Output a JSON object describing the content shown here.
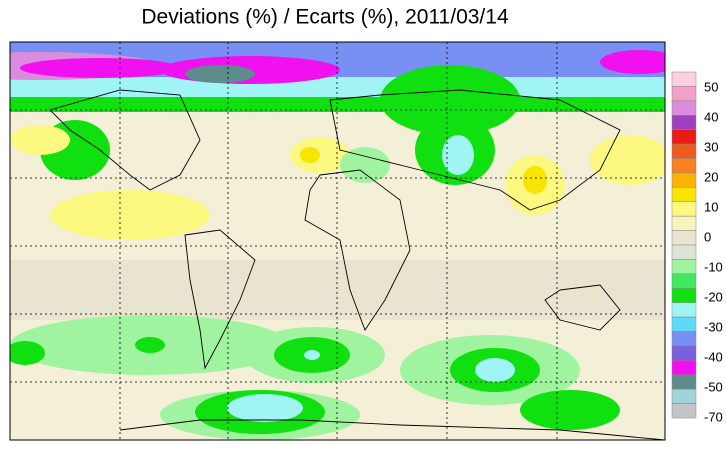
{
  "title": "Deviations (%) / Ecarts (%), 2011/03/14",
  "colorbar": {
    "colors": [
      "#fcd0dc",
      "#f4a0c8",
      "#dc8cdc",
      "#a040c0",
      "#e81c14",
      "#f05a1e",
      "#f8801e",
      "#f8b400",
      "#f8e400",
      "#fcf880",
      "#f8f4c0",
      "#e8e4d0",
      "#dce4d8",
      "#a0f4a0",
      "#40e860",
      "#10e010",
      "#a0f4f4",
      "#60d8f8",
      "#7890f4",
      "#7860e0",
      "#f010f0",
      "#5c8c8c",
      "#a0d4d8",
      "#c4c4c4"
    ],
    "labels": [
      50,
      40,
      30,
      20,
      10,
      0,
      -10,
      -20,
      -30,
      -40,
      -50,
      -70
    ]
  }
}
